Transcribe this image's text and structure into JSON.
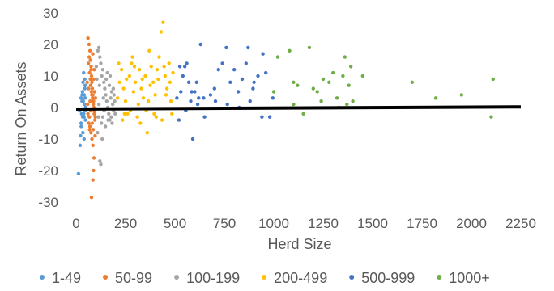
{
  "chart_data": {
    "type": "scatter",
    "xlabel": "Herd Size",
    "ylabel": "Return On Assets",
    "xlim": [
      0,
      2250
    ],
    "ylim": [
      -30,
      30
    ],
    "xticks": [
      0,
      250,
      500,
      750,
      1000,
      1250,
      1500,
      1750,
      2000,
      2250
    ],
    "yticks": [
      -30,
      -20,
      -10,
      0,
      10,
      20,
      30
    ],
    "grid": false,
    "legend_position": "bottom",
    "trendline": {
      "color": "#000000",
      "points": [
        [
          0,
          -0.5
        ],
        [
          2250,
          0.2
        ]
      ]
    },
    "series": [
      {
        "name": "1-49",
        "color": "#5B9BD5",
        "points": [
          [
            12,
            -21
          ],
          [
            20,
            -12
          ],
          [
            22,
            -9
          ],
          [
            25,
            -5
          ],
          [
            28,
            -2
          ],
          [
            30,
            2
          ],
          [
            32,
            5
          ],
          [
            35,
            8
          ],
          [
            38,
            11
          ],
          [
            40,
            -3
          ],
          [
            42,
            1
          ],
          [
            44,
            6
          ],
          [
            45,
            -1
          ],
          [
            46,
            3
          ],
          [
            47,
            -4
          ],
          [
            48,
            0
          ],
          [
            30,
            4
          ],
          [
            26,
            -6
          ],
          [
            34,
            -8
          ],
          [
            36,
            2
          ],
          [
            18,
            -1
          ],
          [
            44,
            9
          ],
          [
            40,
            -10
          ],
          [
            24,
            3
          ],
          [
            38,
            -2
          ],
          [
            46,
            7
          ],
          [
            33,
            -3
          ],
          [
            41,
            4
          ]
        ]
      },
      {
        "name": "50-99",
        "color": "#ED7D31",
        "points": [
          [
            60,
            22
          ],
          [
            65,
            20
          ],
          [
            70,
            18
          ],
          [
            72,
            15
          ],
          [
            75,
            12
          ],
          [
            78,
            10
          ],
          [
            80,
            8
          ],
          [
            82,
            6
          ],
          [
            85,
            4
          ],
          [
            88,
            2
          ],
          [
            90,
            0
          ],
          [
            92,
            -2
          ],
          [
            95,
            -4
          ],
          [
            70,
            -6
          ],
          [
            75,
            -8
          ],
          [
            80,
            -10
          ],
          [
            85,
            -12
          ],
          [
            90,
            -16
          ],
          [
            88,
            -20
          ],
          [
            85,
            -23
          ],
          [
            78,
            -28.5
          ],
          [
            62,
            14
          ],
          [
            66,
            16
          ],
          [
            68,
            11
          ],
          [
            73,
            7
          ],
          [
            77,
            5
          ],
          [
            83,
            3
          ],
          [
            87,
            1
          ],
          [
            93,
            -1
          ],
          [
            97,
            -3
          ],
          [
            64,
            -5
          ],
          [
            68,
            -7
          ],
          [
            72,
            9
          ],
          [
            76,
            13
          ],
          [
            84,
            17
          ],
          [
            58,
            1
          ],
          [
            60,
            -2
          ],
          [
            63,
            6
          ],
          [
            67,
            -3
          ],
          [
            71,
            2
          ],
          [
            74,
            -1
          ],
          [
            79,
            4
          ],
          [
            81,
            -5
          ],
          [
            86,
            -7
          ],
          [
            89,
            9
          ],
          [
            91,
            12
          ],
          [
            94,
            5
          ],
          [
            96,
            -9
          ],
          [
            98,
            3
          ],
          [
            56,
            8
          ]
        ]
      },
      {
        "name": "100-199",
        "color": "#A5A5A5",
        "points": [
          [
            110,
            18
          ],
          [
            115,
            19
          ],
          [
            120,
            16
          ],
          [
            125,
            14
          ],
          [
            130,
            10
          ],
          [
            135,
            12
          ],
          [
            140,
            8
          ],
          [
            145,
            6
          ],
          [
            150,
            4
          ],
          [
            155,
            2
          ],
          [
            160,
            0
          ],
          [
            165,
            -2
          ],
          [
            170,
            -4
          ],
          [
            175,
            3
          ],
          [
            180,
            5
          ],
          [
            185,
            1
          ],
          [
            190,
            -1
          ],
          [
            195,
            2
          ],
          [
            120,
            -17
          ],
          [
            125,
            -18
          ],
          [
            105,
            9
          ],
          [
            112,
            -3
          ],
          [
            118,
            7
          ],
          [
            128,
            -5
          ],
          [
            138,
            3
          ],
          [
            148,
            -6
          ],
          [
            158,
            11
          ],
          [
            168,
            7
          ],
          [
            178,
            -3
          ],
          [
            188,
            6
          ],
          [
            198,
            -2
          ],
          [
            102,
            13
          ],
          [
            108,
            -8
          ],
          [
            132,
            -10
          ],
          [
            142,
            -1
          ],
          [
            152,
            9
          ],
          [
            162,
            -4
          ],
          [
            172,
            10
          ],
          [
            182,
            -5
          ],
          [
            192,
            4
          ],
          [
            115,
            1
          ],
          [
            135,
            -3
          ]
        ]
      },
      {
        "name": "200-499",
        "color": "#FFC000",
        "points": [
          [
            210,
            3
          ],
          [
            220,
            8
          ],
          [
            230,
            12
          ],
          [
            240,
            6
          ],
          [
            250,
            2
          ],
          [
            260,
            -2
          ],
          [
            270,
            10
          ],
          [
            280,
            14
          ],
          [
            290,
            5
          ],
          [
            300,
            8
          ],
          [
            310,
            -3
          ],
          [
            320,
            12
          ],
          [
            330,
            6
          ],
          [
            340,
            3
          ],
          [
            350,
            10
          ],
          [
            360,
            -8
          ],
          [
            370,
            18
          ],
          [
            380,
            13
          ],
          [
            390,
            8
          ],
          [
            400,
            4
          ],
          [
            410,
            12
          ],
          [
            420,
            16
          ],
          [
            430,
            24
          ],
          [
            440,
            27
          ],
          [
            450,
            10
          ],
          [
            460,
            6
          ],
          [
            470,
            14
          ],
          [
            480,
            2
          ],
          [
            490,
            11
          ],
          [
            235,
            -4
          ],
          [
            255,
            9
          ],
          [
            275,
            -1
          ],
          [
            295,
            13
          ],
          [
            315,
            1
          ],
          [
            335,
            9
          ],
          [
            355,
            -1
          ],
          [
            375,
            7
          ],
          [
            395,
            -2
          ],
          [
            415,
            9
          ],
          [
            435,
            -4
          ],
          [
            455,
            4
          ],
          [
            475,
            8
          ],
          [
            215,
            14
          ],
          [
            245,
            -2
          ],
          [
            285,
            16
          ],
          [
            325,
            -5
          ],
          [
            365,
            2
          ],
          [
            405,
            -3
          ],
          [
            445,
            13
          ],
          [
            485,
            -2
          ]
        ]
      },
      {
        "name": "500-999",
        "color": "#4472C4",
        "points": [
          [
            510,
            3
          ],
          [
            520,
            -4
          ],
          [
            530,
            5
          ],
          [
            540,
            10
          ],
          [
            550,
            13
          ],
          [
            560,
            14
          ],
          [
            570,
            8
          ],
          [
            580,
            2
          ],
          [
            590,
            -10
          ],
          [
            600,
            5
          ],
          [
            610,
            8
          ],
          [
            620,
            3
          ],
          [
            630,
            20
          ],
          [
            650,
            -3
          ],
          [
            680,
            4
          ],
          [
            700,
            6
          ],
          [
            720,
            12
          ],
          [
            740,
            14
          ],
          [
            760,
            19
          ],
          [
            780,
            8
          ],
          [
            800,
            12
          ],
          [
            820,
            5
          ],
          [
            840,
            9
          ],
          [
            860,
            14
          ],
          [
            870,
            19
          ],
          [
            880,
            2
          ],
          [
            900,
            8
          ],
          [
            920,
            10
          ],
          [
            940,
            -3
          ],
          [
            960,
            11
          ],
          [
            980,
            -3
          ],
          [
            995,
            3
          ],
          [
            525,
            13
          ],
          [
            555,
            -1
          ],
          [
            585,
            5
          ],
          [
            615,
            1
          ],
          [
            645,
            3
          ],
          [
            705,
            2
          ],
          [
            765,
            1
          ],
          [
            825,
            0
          ],
          [
            895,
            6
          ],
          [
            945,
            17
          ]
        ]
      },
      {
        "name": "1000+",
        "color": "#70AD47",
        "points": [
          [
            1000,
            5
          ],
          [
            1020,
            16
          ],
          [
            1080,
            18
          ],
          [
            1100,
            8
          ],
          [
            1120,
            7
          ],
          [
            1150,
            -2
          ],
          [
            1180,
            19
          ],
          [
            1200,
            6
          ],
          [
            1220,
            5
          ],
          [
            1250,
            9
          ],
          [
            1280,
            8
          ],
          [
            1300,
            11
          ],
          [
            1320,
            3
          ],
          [
            1350,
            10
          ],
          [
            1360,
            16
          ],
          [
            1370,
            1
          ],
          [
            1380,
            7
          ],
          [
            1400,
            2
          ],
          [
            1450,
            10
          ],
          [
            1700,
            8
          ],
          [
            1820,
            3
          ],
          [
            1950,
            4
          ],
          [
            2100,
            -3
          ],
          [
            2110,
            9
          ],
          [
            1100,
            1
          ],
          [
            1240,
            2
          ],
          [
            1330,
            0
          ],
          [
            1390,
            13
          ]
        ]
      }
    ]
  }
}
